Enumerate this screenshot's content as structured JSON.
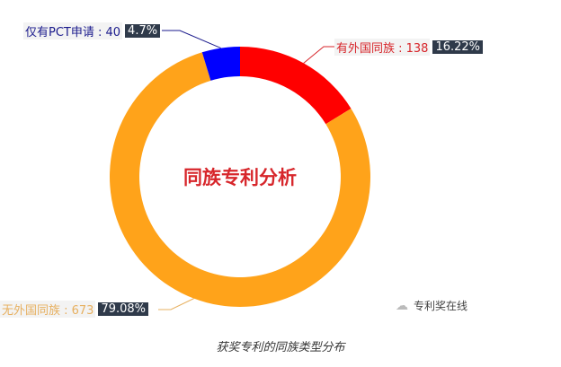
{
  "chart_data": {
    "type": "pie",
    "title": "同族专利分析",
    "caption": "获奖专利的同族类型分布",
    "slices": [
      {
        "name": "有外国同族",
        "value": 138,
        "percent": "16.22%",
        "color": "#ff0000"
      },
      {
        "name": "无外国同族",
        "value": 673,
        "percent": "79.08%",
        "color": "#ffa31a"
      },
      {
        "name": "仅有PCT申请",
        "value": 40,
        "percent": "4.7%",
        "color": "#0000ff"
      }
    ],
    "label_colors": [
      "#d7262b",
      "#e7b060",
      "#1a1a8c"
    ]
  },
  "watermark": "专利奖在线",
  "labels": [
    "有外国同族 : 138",
    "无外国同族 : 673",
    "仅有PCT申请 : 40"
  ]
}
